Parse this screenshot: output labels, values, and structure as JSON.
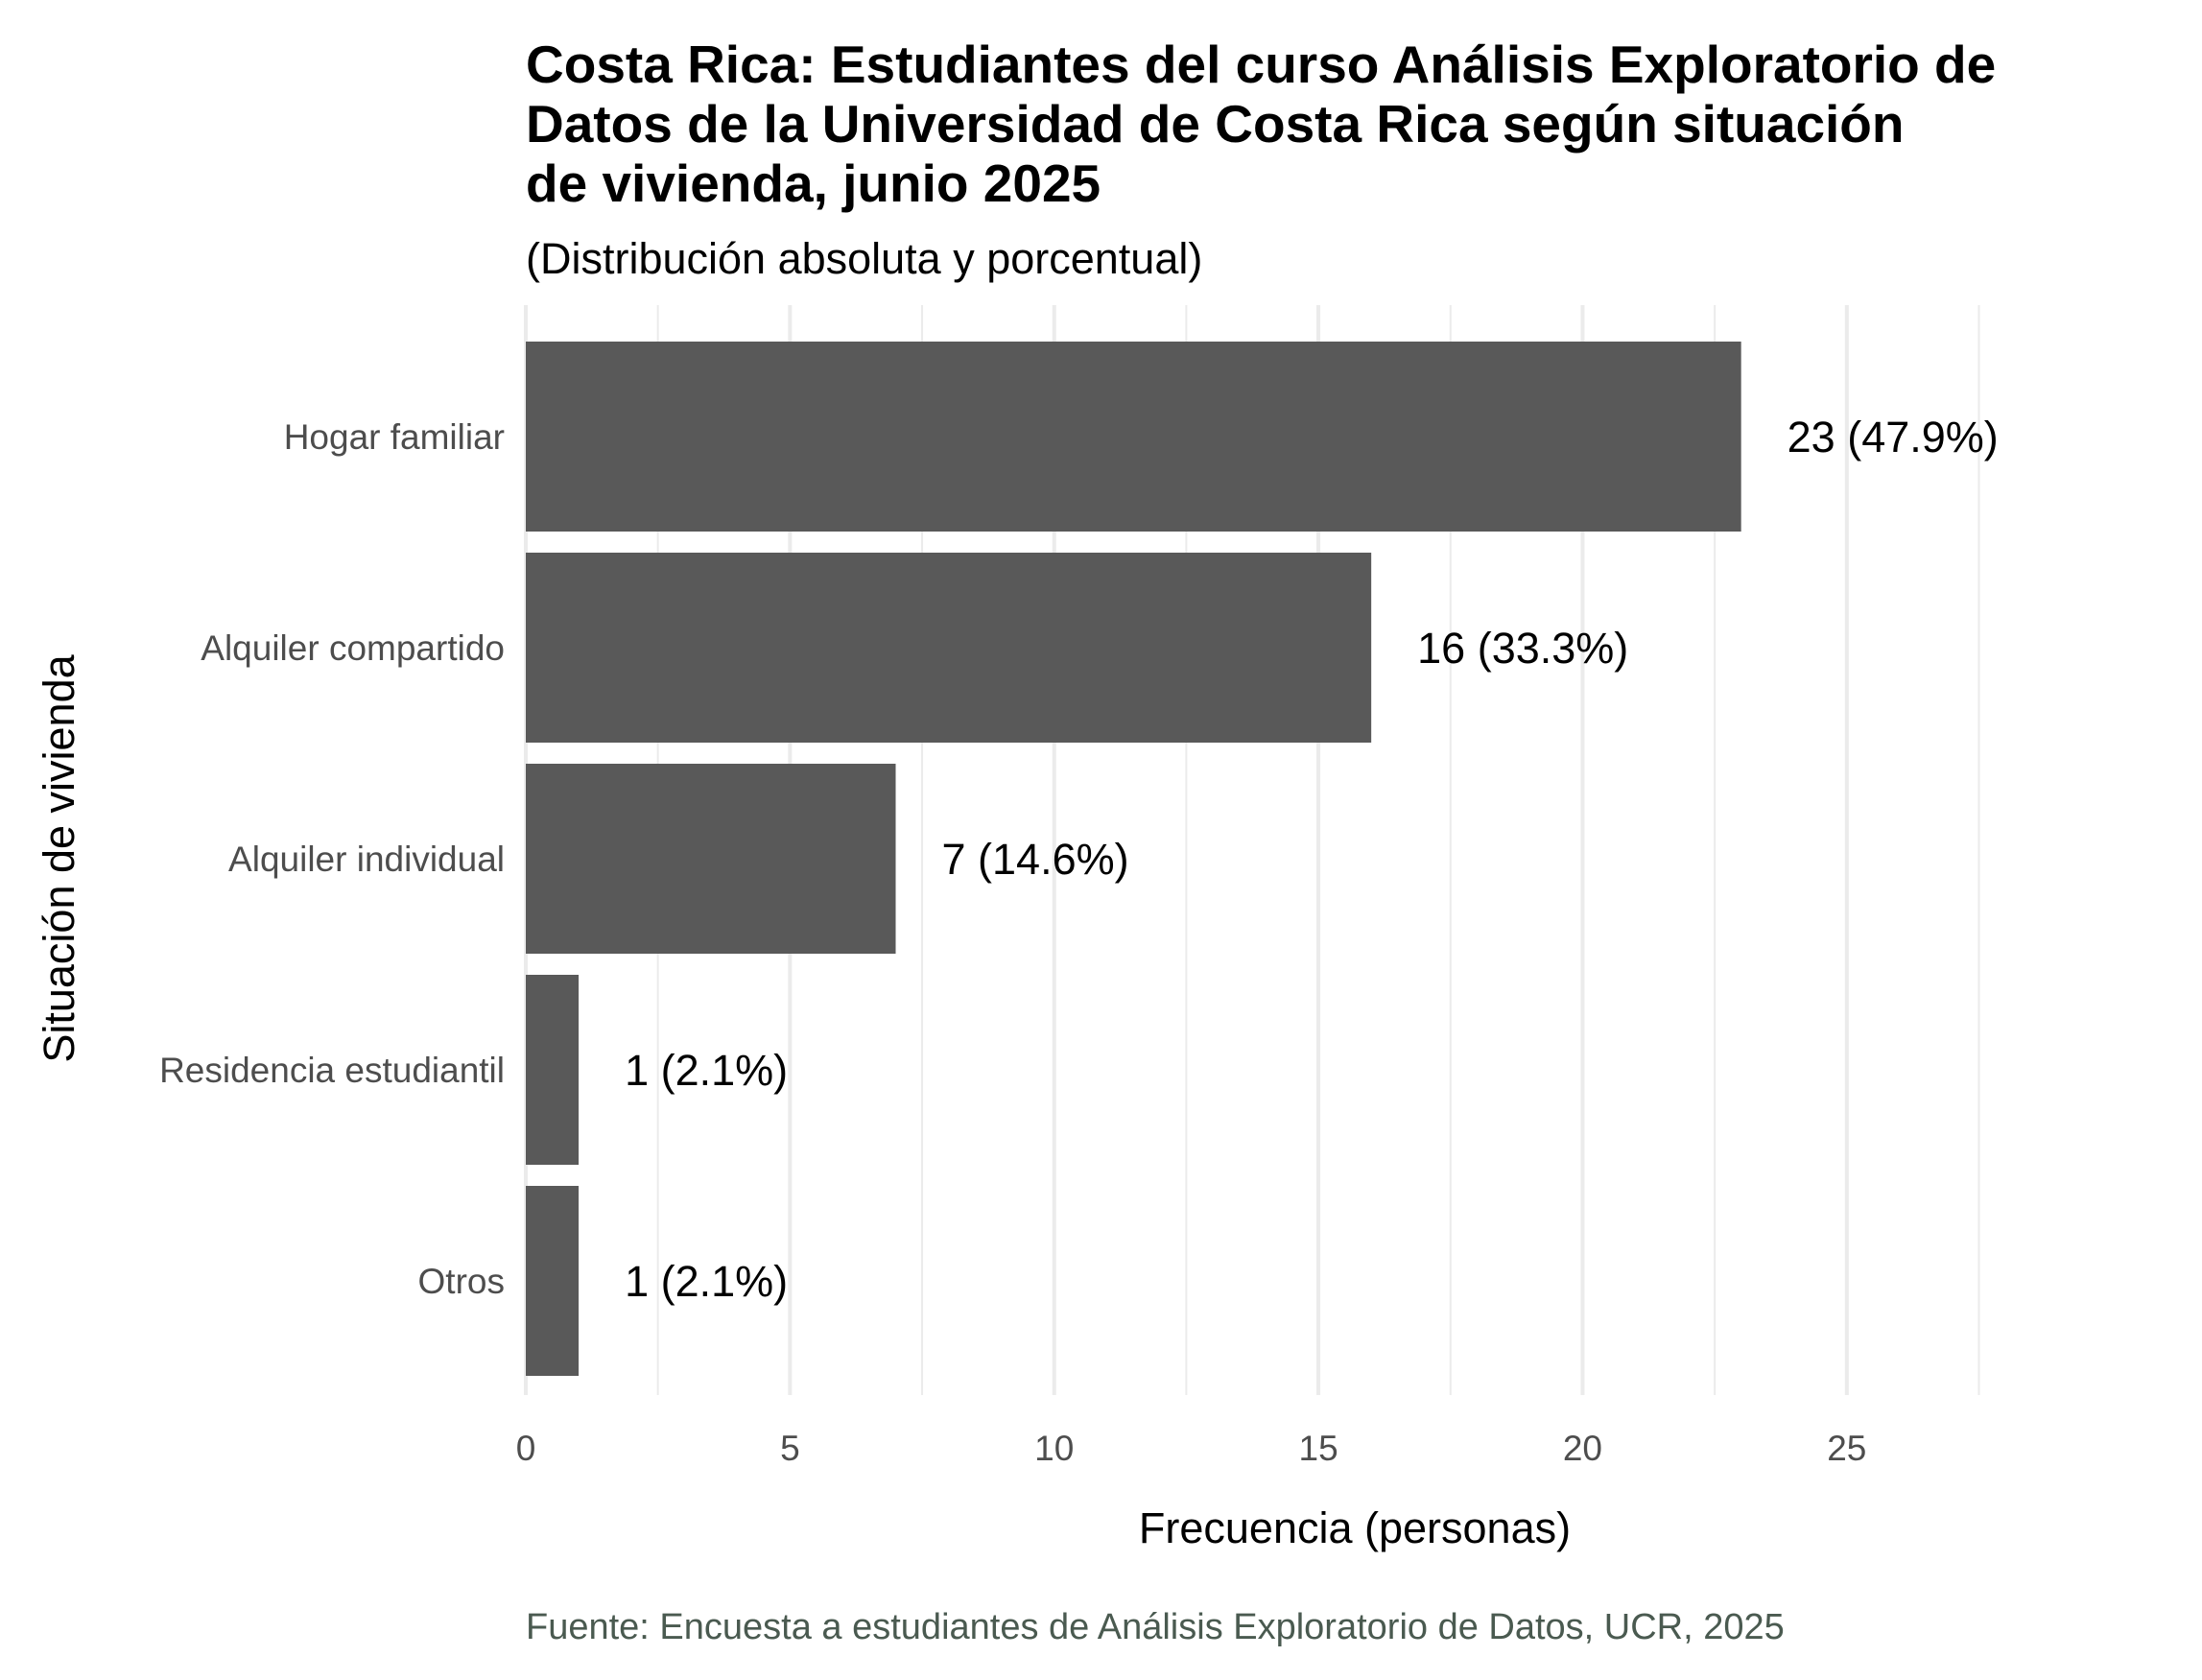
{
  "chart_data": {
    "type": "bar",
    "orientation": "horizontal",
    "title": "Costa Rica: Estudiantes del curso Análisis Exploratorio de Datos de la Universidad de Costa Rica según situación de vivienda, junio 2025",
    "title_lines": [
      "Costa Rica: Estudiantes del curso Análisis Exploratorio de",
      "Datos de la Universidad de Costa Rica según situación",
      "de vivienda, junio 2025"
    ],
    "subtitle": "(Distribución absoluta y porcentual)",
    "xlabel": "Frecuencia (personas)",
    "ylabel": "Situación de vivienda",
    "caption": "Fuente: Encuesta a estudiantes de Análisis Exploratorio de Datos, UCR, 2025",
    "categories": [
      "Hogar familiar",
      "Alquiler compartido",
      "Alquiler individual",
      "Residencia estudiantil",
      "Otros"
    ],
    "values": [
      23,
      16,
      7,
      1,
      1
    ],
    "data_labels": [
      "23 (47.9%)",
      "16 (33.3%)",
      "7 (14.6%)",
      "1 (2.1%)",
      "1 (2.1%)"
    ],
    "xlim": [
      0,
      27.6
    ],
    "x_ticks": [
      0,
      5,
      10,
      15,
      20,
      25
    ],
    "x_tick_labels": [
      "0",
      "5",
      "10",
      "15",
      "20",
      "25"
    ],
    "grid": "vertical",
    "legend": "none",
    "colors": {
      "bar": "#595959",
      "grid": "#ebebeb",
      "tick_text": "#4d4d4d",
      "caption_text": "#4a5a50",
      "title_text": "#000000"
    }
  }
}
